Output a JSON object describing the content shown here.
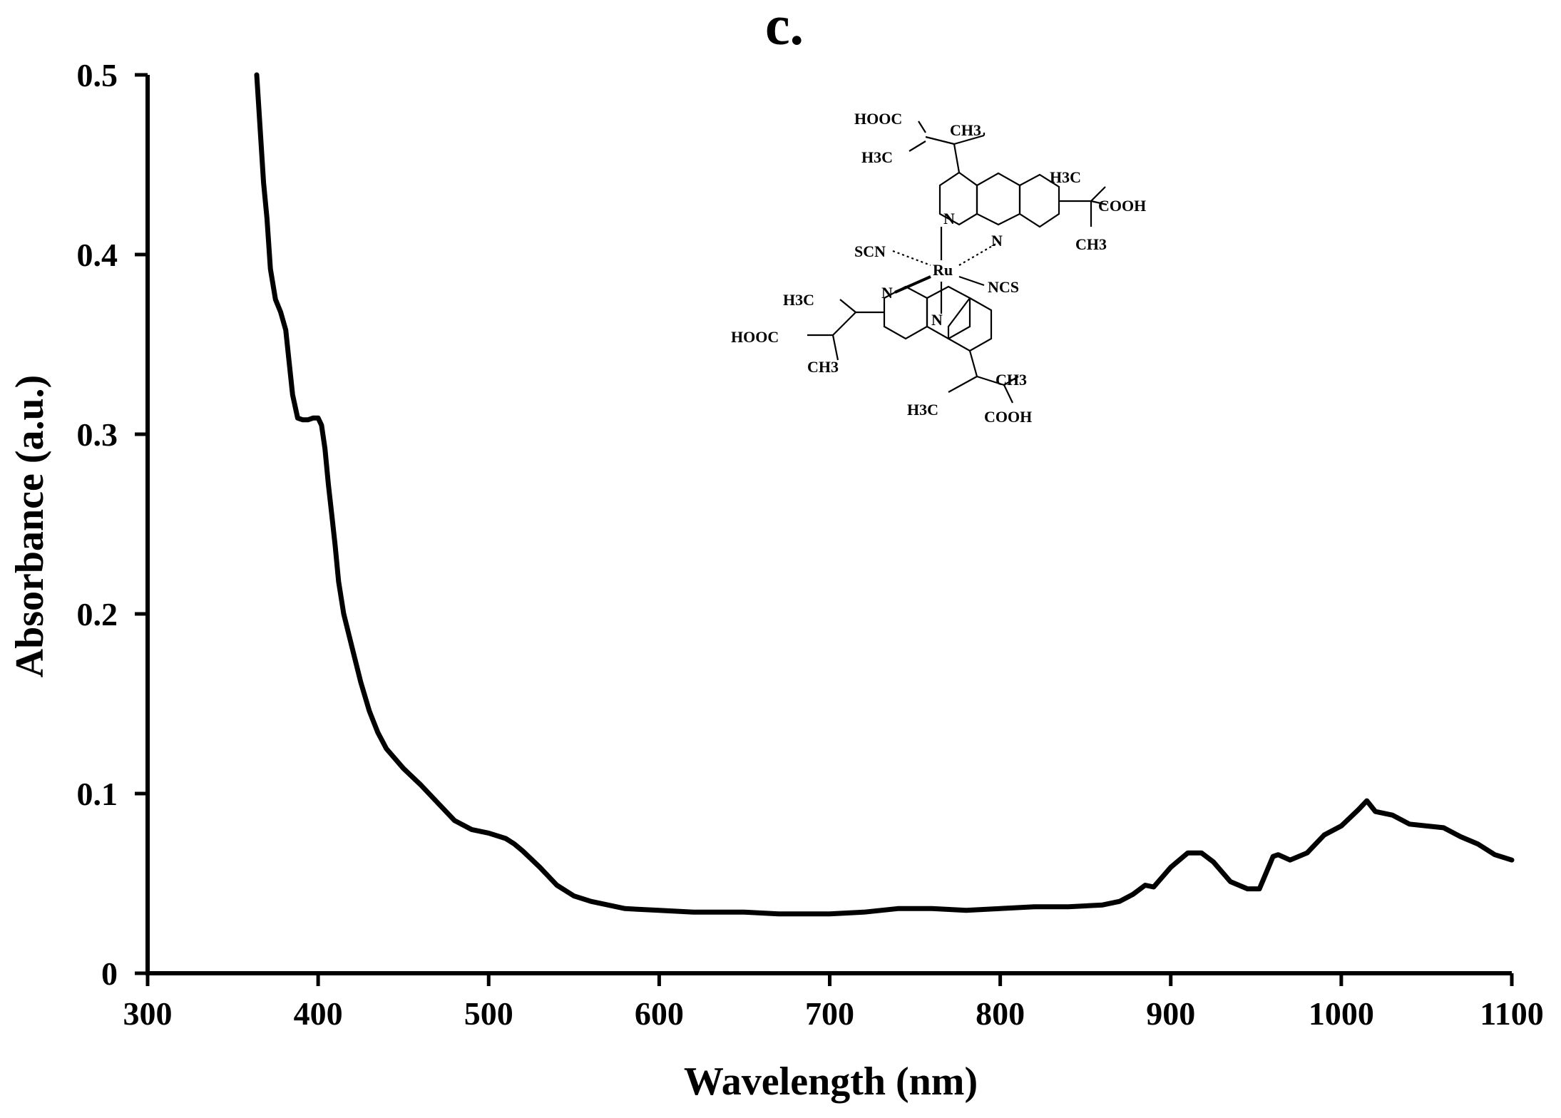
{
  "panel_label": "c.",
  "chart_data": {
    "type": "line",
    "title": "",
    "xlabel": "Wavelength (nm)",
    "ylabel": "Absorbance (a.u.)",
    "xlim": [
      300,
      1100
    ],
    "ylim": [
      0,
      0.5
    ],
    "xticks": [
      300,
      400,
      500,
      600,
      700,
      800,
      900,
      1000,
      1100
    ],
    "yticks": [
      0,
      0.1,
      0.2,
      0.3,
      0.4,
      0.5
    ],
    "xtick_labels": [
      "300",
      "400",
      "500",
      "600",
      "700",
      "800",
      "900",
      "1000",
      "1100"
    ],
    "ytick_labels": [
      "0",
      "0.1",
      "0.2",
      "0.3",
      "0.4",
      "0.5"
    ],
    "grid": false,
    "color": "#000000",
    "series": [
      {
        "x": [
          364,
          366,
          368,
          370,
          372,
          375,
          378,
          381,
          383,
          385,
          388,
          391,
          394,
          397,
          400,
          402,
          404,
          406,
          408,
          410,
          412,
          415,
          420,
          425,
          430,
          435,
          440,
          450,
          460,
          470,
          480,
          490,
          500,
          510,
          515,
          520,
          530,
          540,
          550,
          560,
          580,
          600,
          620,
          650,
          670,
          700,
          720,
          740,
          760,
          780,
          800,
          820,
          840,
          860,
          870,
          878,
          885,
          890,
          900,
          910,
          918,
          925,
          935,
          945,
          952,
          960,
          963,
          970,
          980,
          990,
          1000,
          1010,
          1015,
          1020,
          1030,
          1040,
          1050,
          1060,
          1070,
          1080,
          1090,
          1100
        ],
        "y": [
          0.5,
          0.47,
          0.44,
          0.42,
          0.392,
          0.375,
          0.368,
          0.358,
          0.34,
          0.322,
          0.309,
          0.308,
          0.308,
          0.309,
          0.309,
          0.305,
          0.292,
          0.272,
          0.255,
          0.238,
          0.218,
          0.2,
          0.181,
          0.162,
          0.146,
          0.134,
          0.125,
          0.114,
          0.105,
          0.095,
          0.085,
          0.08,
          0.078,
          0.075,
          0.072,
          0.068,
          0.059,
          0.049,
          0.043,
          0.04,
          0.036,
          0.035,
          0.034,
          0.034,
          0.033,
          0.033,
          0.034,
          0.036,
          0.036,
          0.035,
          0.036,
          0.037,
          0.037,
          0.038,
          0.04,
          0.044,
          0.049,
          0.048,
          0.059,
          0.067,
          0.067,
          0.062,
          0.051,
          0.047,
          0.047,
          0.065,
          0.066,
          0.063,
          0.067,
          0.077,
          0.082,
          0.091,
          0.096,
          0.09,
          0.088,
          0.083,
          0.082,
          0.081,
          0.076,
          0.072,
          0.066,
          0.063
        ]
      }
    ]
  },
  "structure": {
    "metal": "Ru",
    "ligands": [
      "SCN",
      "NCS",
      "N",
      "N",
      "N",
      "N"
    ],
    "groups": {
      "top_hooc": "HOOC",
      "top_ch3": "CH3",
      "top_h3c": "H3C",
      "right_h3c": "H3C",
      "right_cooh": "COOH",
      "right_ch3": "CH3",
      "left_h3c": "H3C",
      "left_hooc": "HOOC",
      "left_ch3": "CH3",
      "bottom_ch3": "CH3",
      "bottom_h3c": "H3C",
      "bottom_cooh": "COOH"
    }
  }
}
